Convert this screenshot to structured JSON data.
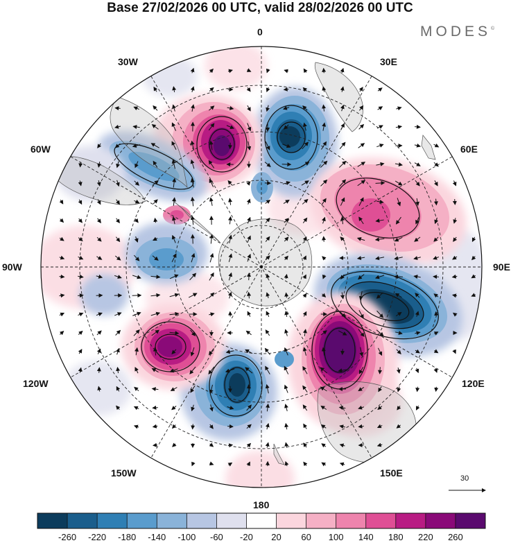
{
  "title": "Base 27/02/2026 00 UTC, valid 28/02/2026 00 UTC",
  "brand": "MODES",
  "brand_mark": "©",
  "longitude_labels": {
    "n0": "0",
    "n30e": "30E",
    "n60e": "60E",
    "n90e": "90E",
    "n120e": "120E",
    "n150e": "150E",
    "n180": "180",
    "n150w": "150W",
    "n120w": "120W",
    "n90w": "90W",
    "n60w": "60W",
    "n30w": "30W"
  },
  "vector_scale_label": "30",
  "colorbar": {
    "colors": [
      "#0c3c5c",
      "#1a5e8c",
      "#2f7fb4",
      "#5a9ccd",
      "#8ab3d9",
      "#b7c6e3",
      "#dfe0ee",
      "#ffffff",
      "#fbd6de",
      "#f5b0c5",
      "#ee84ad",
      "#df4f95",
      "#b81c83",
      "#8a0a78",
      "#5a0a6e"
    ],
    "labels": [
      "-260",
      "-220",
      "-180",
      "-140",
      "-100",
      "-60",
      "-20",
      "20",
      "60",
      "100",
      "140",
      "180",
      "220",
      "260"
    ]
  },
  "anomaly_centers": [
    {
      "name": "blue-0",
      "lon": 10,
      "lat": -45,
      "value": -270
    },
    {
      "name": "magenta-30w",
      "lon": -25,
      "lat": -47,
      "value": 240
    },
    {
      "name": "red-60e",
      "lon": 50,
      "lat": -42,
      "value": 150
    },
    {
      "name": "blue-100e",
      "lon": 103,
      "lat": -43,
      "value": -280
    },
    {
      "name": "magenta-140e",
      "lon": 140,
      "lat": -52,
      "value": 260
    },
    {
      "name": "blue-165w",
      "lon": -165,
      "lat": -48,
      "value": -240
    },
    {
      "name": "magenta-120w",
      "lon": -120,
      "lat": -50,
      "value": 230
    },
    {
      "name": "blue-75w",
      "lon": -78,
      "lat": -55,
      "value": -100
    },
    {
      "name": "blue-50w",
      "lon": -50,
      "lat": -48,
      "value": -110
    },
    {
      "name": "red-95w",
      "lon": -95,
      "lat": -28,
      "value": 60
    }
  ]
}
